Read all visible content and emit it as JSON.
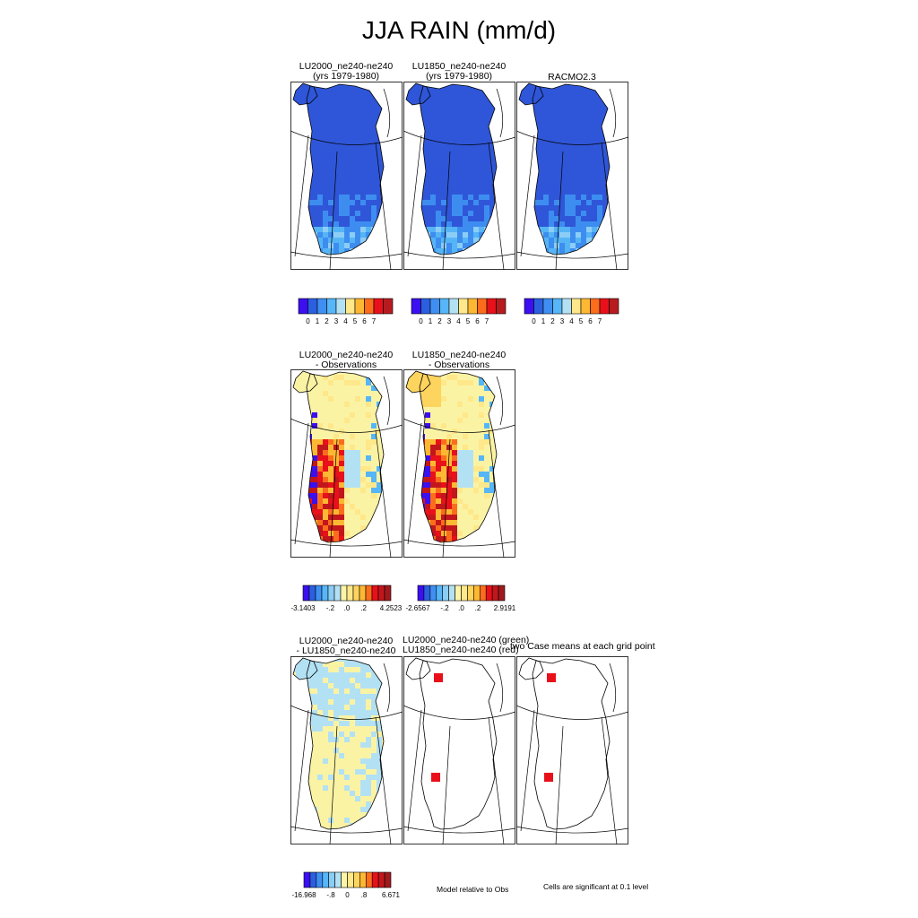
{
  "title": "JJA RAIN (mm/d)",
  "colors": {
    "bar_abs": [
      "#3b0ff0",
      "#2b5fe0",
      "#3f8ff2",
      "#56b6f7",
      "#b3e1f4",
      "#ffe88a",
      "#fdb833",
      "#fb6d1c",
      "#e8101a",
      "#b61c1f"
    ],
    "bar_diff": [
      "#3b0ff0",
      "#2b5fe0",
      "#3f8ff2",
      "#56b6f7",
      "#8ccdf6",
      "#b3e1f4",
      "#fcf4a6",
      "#ffe88a",
      "#fdd45d",
      "#fdb833",
      "#fb6d1c",
      "#e8101a",
      "#c1171c",
      "#a01a1d"
    ],
    "ice_dark": "#2f56d8",
    "ice_mid": "#3d8df0",
    "ice_light": "#55b4f5",
    "yellow": "#fbf3a4",
    "sig": "#e8101a"
  },
  "chart_data": [
    {
      "type": "heatmap",
      "title": "LU2000_ne240-ne240",
      "subtitle": "(yrs 1979-1980)",
      "region": "Greenland"
    },
    {
      "type": "heatmap",
      "title": "LU1850_ne240-ne240",
      "subtitle": "(yrs 1979-1980)",
      "region": "Greenland"
    },
    {
      "type": "heatmap",
      "title": "RACMO2.3",
      "subtitle": "",
      "region": "Greenland"
    },
    {
      "type": "heatmap",
      "title": "LU2000_ne240-ne240",
      "subtitle": "- Observations",
      "region": "Greenland"
    },
    {
      "type": "heatmap",
      "title": "LU1850_ne240-ne240",
      "subtitle": "- Observations",
      "region": "Greenland"
    },
    {
      "type": "heatmap",
      "title": "LU2000_ne240-ne240",
      "subtitle": "- LU1850_ne240-ne240",
      "region": "Greenland"
    },
    {
      "type": "heatmap",
      "title": "LU2000_ne240-ne240 (green)",
      "subtitle": "LU1850_ne240-ne240 (red)",
      "region": "Greenland"
    },
    {
      "type": "heatmap",
      "title": "two Case means at each grid point",
      "subtitle": "",
      "region": "Greenland"
    }
  ],
  "colorbars": {
    "abs": {
      "labels": [
        "0",
        "1",
        "2",
        "3",
        "4",
        "5",
        "6",
        "7"
      ]
    },
    "diff1": {
      "labels": [
        "-3.1403",
        "-.2",
        ".0",
        ".2",
        "4.2523"
      ]
    },
    "diff2": {
      "labels": [
        "-2.6567",
        "-.2",
        ".0",
        ".2",
        "2.9191"
      ]
    },
    "diff3": {
      "labels": [
        "-16.968",
        "-.8",
        "0",
        ".8",
        "6.671"
      ]
    }
  },
  "notes": {
    "model_rel": "Model relative to Obs",
    "significance": "Cells are significant at 0.1 level"
  }
}
